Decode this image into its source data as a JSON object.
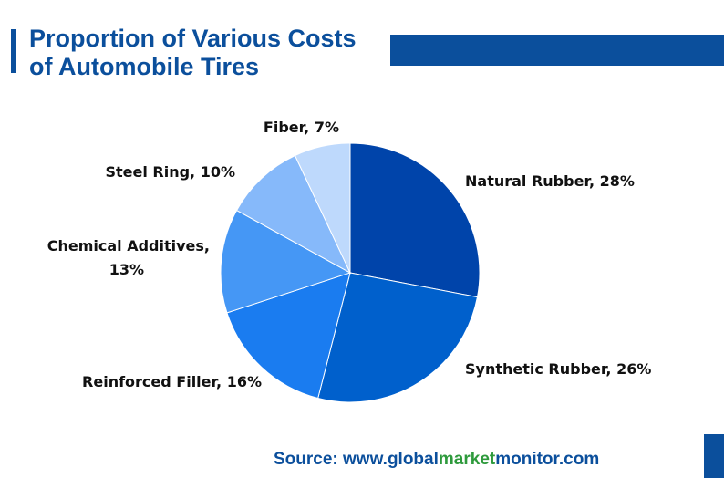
{
  "header": {
    "title_line1": "Proportion of Various Costs",
    "title_line2": "of Automobile Tires"
  },
  "chart_data": {
    "type": "pie",
    "title": "Proportion of Various Costs of Automobile Tires",
    "unit": "%",
    "slices": [
      {
        "label": "Natural Rubber",
        "value": 28,
        "color": "#0044aa"
      },
      {
        "label": "Synthetic Rubber",
        "value": 26,
        "color": "#0060cc"
      },
      {
        "label": "Reinforced Filler",
        "value": 16,
        "color": "#1a7cf0"
      },
      {
        "label": "Chemical Additives",
        "value": 13,
        "color": "#4597f5"
      },
      {
        "label": "Steel Ring",
        "value": 10,
        "color": "#86b9fa"
      },
      {
        "label": "Fiber",
        "value": 7,
        "color": "#bed9fc"
      }
    ]
  },
  "footer": {
    "source_prefix": "Source: www.",
    "source_global": "global",
    "source_market": "market",
    "source_monitor": "monitor",
    "source_suffix": ".com"
  },
  "colors": {
    "brand_blue": "#0b4f9c",
    "source_green": "#2e9a3c",
    "source_blue": "#0b4f9c"
  }
}
